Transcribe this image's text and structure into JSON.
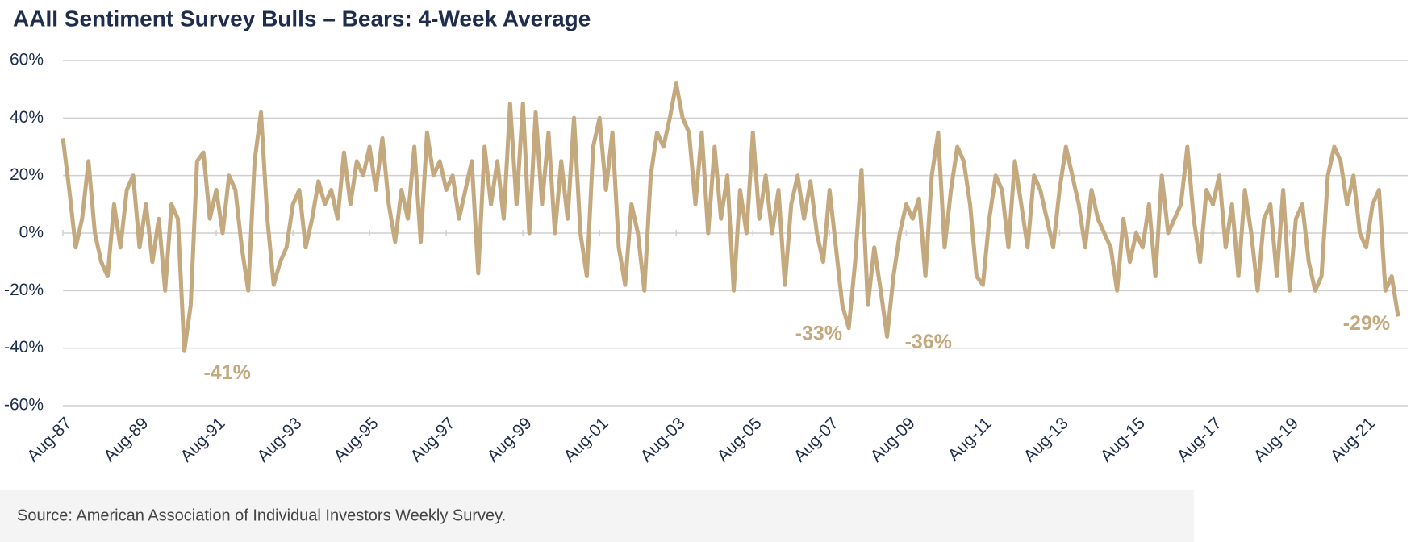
{
  "chart_data": {
    "type": "line",
    "title": "AAII Sentiment Survey Bulls – Bears: 4-Week Average",
    "footnote": "Source: American Association of Individual Investors Weekly Survey.",
    "x": [
      "1987-08",
      "1987-10",
      "1987-12",
      "1988-02",
      "1988-04",
      "1988-06",
      "1988-08",
      "1988-10",
      "1988-12",
      "1989-02",
      "1989-04",
      "1989-06",
      "1989-08",
      "1989-10",
      "1989-12",
      "1990-02",
      "1990-04",
      "1990-06",
      "1990-08",
      "1990-10",
      "1990-12",
      "1991-02",
      "1991-04",
      "1991-06",
      "1991-08",
      "1991-10",
      "1991-12",
      "1992-02",
      "1992-04",
      "1992-06",
      "1992-08",
      "1992-10",
      "1992-12",
      "1993-02",
      "1993-04",
      "1993-06",
      "1993-08",
      "1993-10",
      "1993-12",
      "1994-02",
      "1994-04",
      "1994-06",
      "1994-08",
      "1994-10",
      "1994-12",
      "1995-02",
      "1995-04",
      "1995-06",
      "1995-08",
      "1995-10",
      "1995-12",
      "1996-02",
      "1996-04",
      "1996-06",
      "1996-08",
      "1996-10",
      "1996-12",
      "1997-02",
      "1997-04",
      "1997-06",
      "1997-08",
      "1997-10",
      "1997-12",
      "1998-02",
      "1998-04",
      "1998-06",
      "1998-08",
      "1998-10",
      "1998-12",
      "1999-02",
      "1999-04",
      "1999-06",
      "1999-08",
      "1999-10",
      "1999-12",
      "2000-02",
      "2000-04",
      "2000-06",
      "2000-08",
      "2000-10",
      "2000-12",
      "2001-02",
      "2001-04",
      "2001-06",
      "2001-08",
      "2001-10",
      "2001-12",
      "2002-02",
      "2002-04",
      "2002-06",
      "2002-08",
      "2002-10",
      "2002-12",
      "2003-02",
      "2003-04",
      "2003-06",
      "2003-08",
      "2003-10",
      "2003-12",
      "2004-02",
      "2004-04",
      "2004-06",
      "2004-08",
      "2004-10",
      "2004-12",
      "2005-02",
      "2005-04",
      "2005-06",
      "2005-08",
      "2005-10",
      "2005-12",
      "2006-02",
      "2006-04",
      "2006-06",
      "2006-08",
      "2006-10",
      "2006-12",
      "2007-02",
      "2007-04",
      "2007-06",
      "2007-08",
      "2007-10",
      "2007-12",
      "2008-02",
      "2008-04",
      "2008-06",
      "2008-08",
      "2008-10",
      "2008-12",
      "2009-02",
      "2009-04",
      "2009-06",
      "2009-08",
      "2009-10",
      "2009-12",
      "2010-02",
      "2010-04",
      "2010-06",
      "2010-08",
      "2010-10",
      "2010-12",
      "2011-02",
      "2011-04",
      "2011-06",
      "2011-08",
      "2011-10",
      "2011-12",
      "2012-02",
      "2012-04",
      "2012-06",
      "2012-08",
      "2012-10",
      "2012-12",
      "2013-02",
      "2013-04",
      "2013-06",
      "2013-08",
      "2013-10",
      "2013-12",
      "2014-02",
      "2014-04",
      "2014-06",
      "2014-08",
      "2014-10",
      "2014-12",
      "2015-02",
      "2015-04",
      "2015-06",
      "2015-08",
      "2015-10",
      "2015-12",
      "2016-02",
      "2016-04",
      "2016-06",
      "2016-08",
      "2016-10",
      "2016-12",
      "2017-02",
      "2017-04",
      "2017-06",
      "2017-08",
      "2017-10",
      "2017-12",
      "2018-02",
      "2018-04",
      "2018-06",
      "2018-08",
      "2018-10",
      "2018-12",
      "2019-02",
      "2019-04",
      "2019-06",
      "2019-08",
      "2019-10",
      "2019-12",
      "2020-02",
      "2020-04",
      "2020-06",
      "2020-08",
      "2020-10",
      "2020-12",
      "2021-02",
      "2021-04",
      "2021-06",
      "2021-08",
      "2021-10",
      "2021-12",
      "2022-02",
      "2022-04",
      "2022-06"
    ],
    "series": [
      {
        "name": "Bulls – Bears",
        "color": "#c4a87e",
        "values": [
          33,
          15,
          -5,
          5,
          25,
          0,
          -10,
          -15,
          10,
          -5,
          15,
          20,
          -5,
          10,
          -10,
          5,
          -20,
          10,
          5,
          -41,
          -25,
          25,
          28,
          5,
          15,
          0,
          20,
          15,
          -5,
          -20,
          25,
          42,
          5,
          -18,
          -10,
          -5,
          10,
          15,
          -5,
          5,
          18,
          10,
          15,
          5,
          28,
          10,
          25,
          20,
          30,
          15,
          33,
          10,
          -3,
          15,
          5,
          30,
          -3,
          35,
          20,
          25,
          15,
          20,
          5,
          15,
          25,
          -14,
          30,
          10,
          25,
          5,
          45,
          10,
          45,
          0,
          42,
          10,
          35,
          0,
          25,
          5,
          40,
          0,
          -15,
          30,
          40,
          15,
          35,
          -5,
          -18,
          10,
          0,
          -20,
          20,
          35,
          30,
          40,
          52,
          40,
          35,
          10,
          35,
          0,
          30,
          5,
          20,
          -20,
          15,
          0,
          35,
          5,
          20,
          0,
          15,
          -18,
          10,
          20,
          5,
          18,
          0,
          -10,
          15,
          -5,
          -25,
          -33,
          -10,
          22,
          -25,
          -5,
          -20,
          -36,
          -15,
          0,
          10,
          5,
          12,
          -15,
          20,
          35,
          -5,
          15,
          30,
          25,
          10,
          -15,
          -18,
          5,
          20,
          15,
          -5,
          25,
          10,
          -5,
          20,
          15,
          5,
          -5,
          15,
          30,
          20,
          10,
          -5,
          15,
          5,
          0,
          -5,
          -20,
          5,
          -10,
          0,
          -5,
          10,
          -15,
          20,
          0,
          5,
          10,
          30,
          5,
          -10,
          15,
          10,
          20,
          -5,
          10,
          -15,
          15,
          0,
          -20,
          5,
          10,
          -15,
          15,
          -20,
          5,
          10,
          -10,
          -20,
          -15,
          20,
          30,
          25,
          10,
          20,
          0,
          -5,
          10,
          15,
          -20,
          -15,
          -29
        ]
      }
    ],
    "annotations": [
      {
        "text": "-41%",
        "x": "1990-10"
      },
      {
        "text": "-33%",
        "x": "2008-02"
      },
      {
        "text": "-36%",
        "x": "2009-02"
      },
      {
        "text": "-29%",
        "x": "2022-06"
      }
    ],
    "xlim": [
      "1987-08",
      "2022-09"
    ],
    "xticks": [
      {
        "value": "1987-08",
        "label": "Aug-87"
      },
      {
        "value": "1989-08",
        "label": "Aug-89"
      },
      {
        "value": "1991-08",
        "label": "Aug-91"
      },
      {
        "value": "1993-08",
        "label": "Aug-93"
      },
      {
        "value": "1995-08",
        "label": "Aug-95"
      },
      {
        "value": "1997-08",
        "label": "Aug-97"
      },
      {
        "value": "1999-08",
        "label": "Aug-99"
      },
      {
        "value": "2001-08",
        "label": "Aug-01"
      },
      {
        "value": "2003-08",
        "label": "Aug-03"
      },
      {
        "value": "2005-08",
        "label": "Aug-05"
      },
      {
        "value": "2007-08",
        "label": "Aug-07"
      },
      {
        "value": "2009-08",
        "label": "Aug-09"
      },
      {
        "value": "2011-08",
        "label": "Aug-11"
      },
      {
        "value": "2013-08",
        "label": "Aug-13"
      },
      {
        "value": "2015-08",
        "label": "Aug-15"
      },
      {
        "value": "2017-08",
        "label": "Aug-17"
      },
      {
        "value": "2019-08",
        "label": "Aug-19"
      },
      {
        "value": "2021-08",
        "label": "Aug-21"
      }
    ],
    "ylim": [
      -60,
      60
    ],
    "yticks": [
      {
        "value": -60,
        "label": "-60%"
      },
      {
        "value": -40,
        "label": "-40%"
      },
      {
        "value": -20,
        "label": "-20%"
      },
      {
        "value": 0,
        "label": "0%"
      },
      {
        "value": 20,
        "label": "20%"
      },
      {
        "value": 40,
        "label": "40%"
      },
      {
        "value": 60,
        "label": "60%"
      }
    ],
    "grid": true
  }
}
